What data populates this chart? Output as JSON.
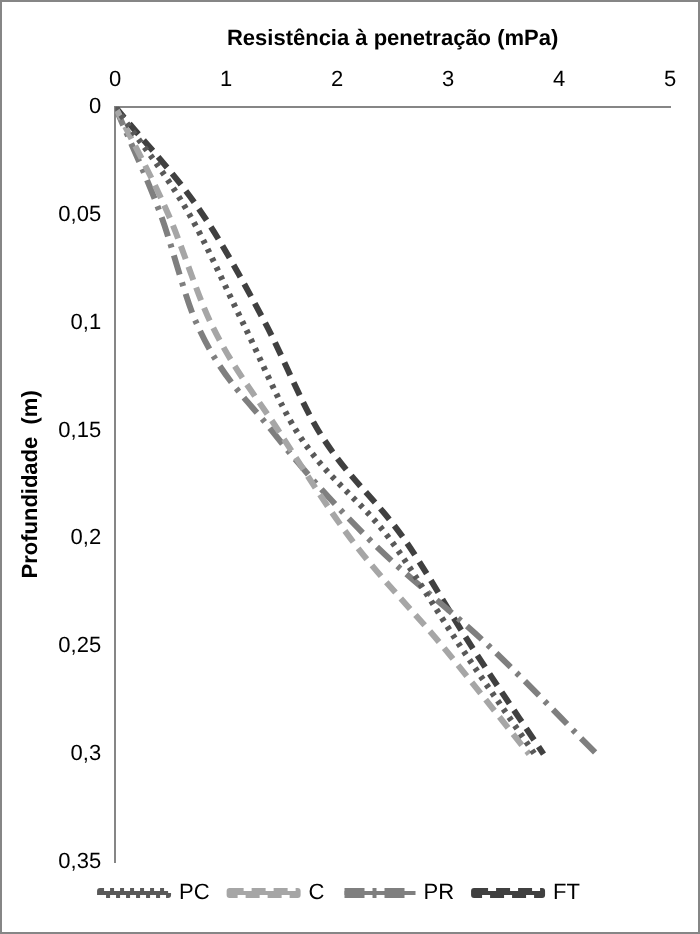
{
  "chart_data": {
    "type": "line",
    "xlabel": "Resistência à penetração (mPa)",
    "ylabel": "Profundidade  (m)",
    "xlim": [
      0,
      5
    ],
    "xticks": [
      0,
      1,
      2,
      3,
      4,
      5
    ],
    "ylim": [
      0.35,
      0
    ],
    "yticks": [
      0,
      {
        "value": 0.05,
        "label": "0,05"
      },
      {
        "value": 0.1,
        "label": "0,1"
      },
      {
        "value": 0.15,
        "label": "0,15"
      },
      {
        "value": 0.2,
        "label": "0,2"
      },
      {
        "value": 0.25,
        "label": "0,25"
      },
      {
        "value": 0.3,
        "label": "0,3"
      },
      {
        "value": 0.35,
        "label": "0,35"
      }
    ],
    "grid": false,
    "legend": "bottom",
    "marker": "none",
    "series": [
      {
        "name": "PC",
        "color": "#595959",
        "line_style": "dotted",
        "x": [
          0,
          0.67,
          1.15,
          1.63,
          2.47,
          3.11,
          3.78
        ],
        "values": [
          0,
          0.05,
          0.1,
          0.15,
          0.2,
          0.25,
          0.3
        ]
      },
      {
        "name": "C",
        "color": "#a6a6a6",
        "line_style": "dashed",
        "x": [
          0,
          0.48,
          0.86,
          1.47,
          2.12,
          2.95,
          3.73
        ],
        "values": [
          0,
          0.05,
          0.1,
          0.15,
          0.2,
          0.25,
          0.3
        ]
      },
      {
        "name": "PR",
        "color": "#7f7f7f",
        "line_style": "dashed",
        "x": [
          0,
          0.41,
          0.73,
          1.41,
          2.28,
          3.37,
          4.34
        ],
        "values": [
          0,
          0.05,
          0.1,
          0.15,
          0.2,
          0.25,
          0.3
        ]
      },
      {
        "name": "FT",
        "color": "#404040",
        "line_style": "dashed",
        "x": [
          0,
          0.79,
          1.35,
          1.83,
          2.6,
          3.21,
          3.86
        ],
        "values": [
          0,
          0.05,
          0.1,
          0.15,
          0.2,
          0.25,
          0.3
        ]
      }
    ]
  }
}
